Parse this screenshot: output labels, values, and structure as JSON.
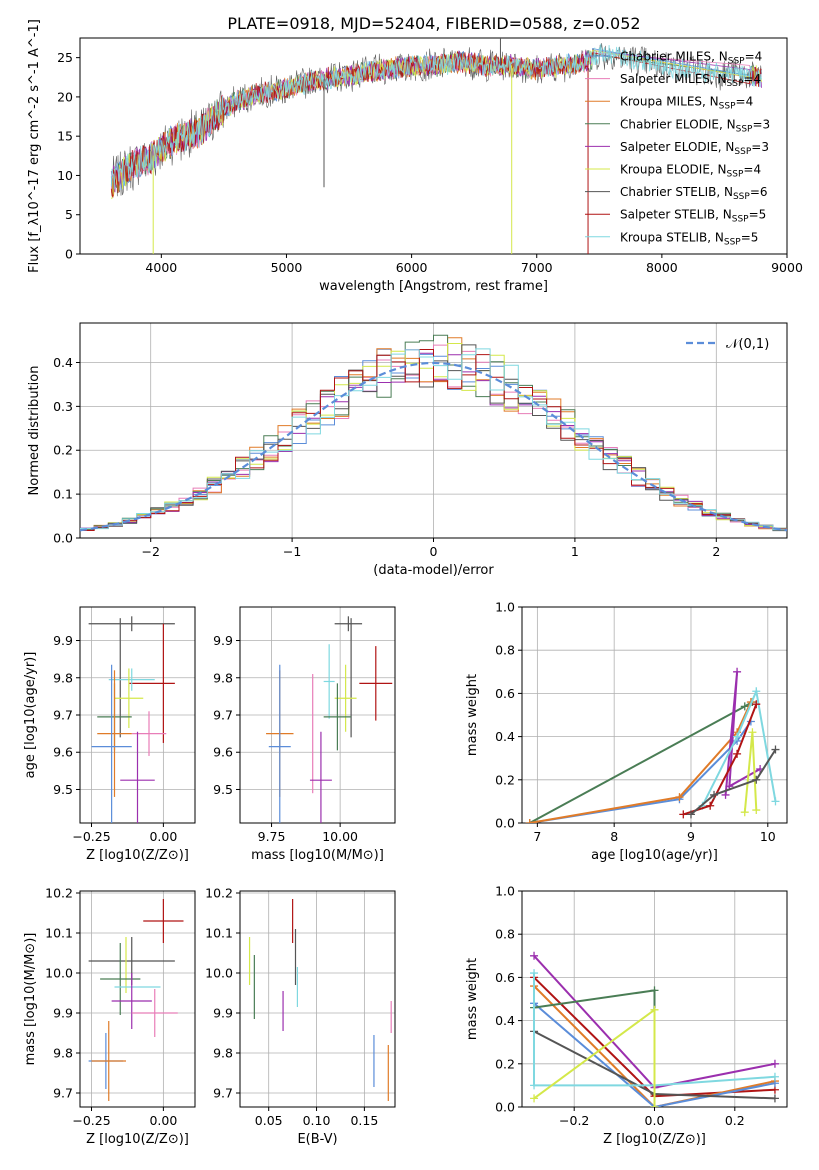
{
  "figure_title": "PLATE=0918, MJD=52404, FIBERID=0588, z=0.052",
  "colors": {
    "chabrier_miles": "#5b8dd9",
    "salpeter_miles": "#e87db8",
    "kroupa_miles": "#e07b28",
    "chabrier_elodie": "#4a7d55",
    "salpeter_elodie": "#9b2fae",
    "kroupa_elodie": "#d4e84a",
    "chabrier_stelib": "#555555",
    "salpeter_stelib": "#b01414",
    "kroupa_stelib": "#7fd8e0",
    "gauss": "#5b8dd9"
  },
  "chart_data": [
    {
      "id": "spectrum",
      "type": "line",
      "xlabel": "wavelength [Angstrom, rest frame]",
      "ylabel": "Flux [f_λ10^-17 erg cm^-2 s^-1 A^-1]",
      "xlim": [
        3350,
        9000
      ],
      "ylim": [
        0,
        27.5
      ],
      "xticks": [
        4000,
        5000,
        6000,
        7000,
        8000,
        9000
      ],
      "yticks": [
        0,
        5,
        10,
        15,
        20,
        25
      ],
      "grid": false,
      "legend_position": "top-right",
      "series": [
        {
          "name": "Chabrier MILES, N_SSP=4",
          "color_key": "chabrier_miles"
        },
        {
          "name": "Salpeter MILES, N_SSP=4",
          "color_key": "salpeter_miles"
        },
        {
          "name": "Kroupa MILES, N_SSP=4",
          "color_key": "kroupa_miles"
        },
        {
          "name": "Chabrier ELODIE, N_SSP=3",
          "color_key": "chabrier_elodie"
        },
        {
          "name": "Salpeter ELODIE, N_SSP=3",
          "color_key": "salpeter_elodie"
        },
        {
          "name": "Kroupa ELODIE, N_SSP=4",
          "color_key": "kroupa_elodie"
        },
        {
          "name": "Chabrier STELIB, N_SSP=6",
          "color_key": "chabrier_stelib"
        },
        {
          "name": "Salpeter STELIB, N_SSP=5",
          "color_key": "salpeter_stelib"
        },
        {
          "name": "Kroupa STELIB, N_SSP=5",
          "color_key": "kroupa_stelib"
        }
      ],
      "continuum": [
        [
          3600,
          9
        ],
        [
          3700,
          10.5
        ],
        [
          3800,
          11.5
        ],
        [
          3900,
          12
        ],
        [
          4000,
          13.5
        ],
        [
          4100,
          14.5
        ],
        [
          4200,
          15
        ],
        [
          4300,
          15.5
        ],
        [
          4400,
          17
        ],
        [
          4500,
          18.5
        ],
        [
          4600,
          19.5
        ],
        [
          4700,
          20
        ],
        [
          4800,
          20.5
        ],
        [
          5000,
          21
        ],
        [
          5200,
          22
        ],
        [
          5400,
          22.5
        ],
        [
          5600,
          23
        ],
        [
          5800,
          23.5
        ],
        [
          6000,
          24
        ],
        [
          6200,
          24
        ],
        [
          6400,
          24.5
        ],
        [
          6600,
          24
        ],
        [
          6800,
          24
        ],
        [
          7000,
          23.5
        ],
        [
          7200,
          24
        ],
        [
          7400,
          24.5
        ],
        [
          7500,
          25.5
        ],
        [
          7700,
          25
        ],
        [
          8000,
          24
        ],
        [
          8200,
          23.5
        ],
        [
          8400,
          23
        ],
        [
          8600,
          23
        ],
        [
          8800,
          22.5
        ]
      ],
      "noise_amplitude": 1.2,
      "spikes": [
        {
          "x": 3935,
          "y": 0,
          "color_key": "kroupa_elodie"
        },
        {
          "x": 5300,
          "y": 8.5,
          "color_key": "chabrier_stelib"
        },
        {
          "x": 6800,
          "y": 0,
          "color_key": "kroupa_elodie"
        },
        {
          "x": 7410,
          "y": 0,
          "color_key": "salpeter_stelib"
        },
        {
          "x": 6710,
          "y": 27.5,
          "color_key": "chabrier_stelib"
        }
      ]
    },
    {
      "id": "residuals",
      "type": "histogram",
      "xlabel": "(data-model)/error",
      "ylabel": "Normed distribution",
      "xlim": [
        -2.5,
        2.5
      ],
      "ylim": [
        0,
        0.49
      ],
      "xticks": [
        -2,
        -1,
        0,
        1,
        2
      ],
      "yticks": [
        0.0,
        0.1,
        0.2,
        0.3,
        0.4
      ],
      "grid": true,
      "legend_position": "top-right",
      "bin_width": 0.1,
      "gauss_label": "𝒩(0,1)",
      "series_seed_keys": [
        "chabrier_miles",
        "salpeter_miles",
        "kroupa_miles",
        "chabrier_elodie",
        "salpeter_elodie",
        "kroupa_elodie",
        "chabrier_stelib",
        "salpeter_stelib",
        "kroupa_stelib"
      ]
    },
    {
      "id": "age_vs_Z",
      "type": "errorbar",
      "xlabel": "Z [log10(Z/Z⊙)]",
      "ylabel": "age [log10(age/yr)]",
      "xlim": [
        -0.29,
        0.11
      ],
      "ylim": [
        9.41,
        9.99
      ],
      "xticks": [
        -0.25,
        0.0
      ],
      "yticks": [
        9.5,
        9.6,
        9.7,
        9.8,
        9.9
      ],
      "grid": true,
      "points": [
        {
          "color_key": "chabrier_stelib",
          "x": -0.11,
          "xerr": 0.15,
          "y": 9.945,
          "yerr": 0.02
        },
        {
          "color_key": "salpeter_stelib",
          "x": 0.0,
          "xerr": 0.0,
          "y": 9.785,
          "yerr": 0.16
        },
        {
          "color_key": "salpeter_stelib",
          "x": -0.04,
          "xerr": 0.08,
          "y": 9.785,
          "yerr": 0.0
        },
        {
          "color_key": "chabrier_stelib",
          "x": -0.15,
          "xerr": 0.0,
          "y": 9.8,
          "yerr": 0.16
        },
        {
          "color_key": "kroupa_stelib",
          "x": -0.11,
          "xerr": 0.08,
          "y": 9.795,
          "yerr": 0.03
        },
        {
          "color_key": "kroupa_elodie",
          "x": -0.12,
          "xerr": 0.05,
          "y": 9.745,
          "yerr": 0.08
        },
        {
          "color_key": "chabrier_elodie",
          "x": -0.17,
          "xerr": 0.06,
          "y": 9.695,
          "yerr": 0.09
        },
        {
          "color_key": "salpeter_miles",
          "x": -0.05,
          "xerr": 0.06,
          "y": 9.65,
          "yerr": 0.06
        },
        {
          "color_key": "kroupa_miles",
          "x": -0.17,
          "xerr": 0.06,
          "y": 9.65,
          "yerr": 0.17
        },
        {
          "color_key": "chabrier_miles",
          "x": -0.18,
          "xerr": 0.07,
          "y": 9.615,
          "yerr": 0.22
        },
        {
          "color_key": "salpeter_elodie",
          "x": -0.09,
          "xerr": 0.06,
          "y": 9.525,
          "yerr": 0.13
        }
      ]
    },
    {
      "id": "age_vs_mass",
      "type": "errorbar",
      "xlabel": "mass [log10(M/M⊙)]",
      "ylabel": "",
      "xlim": [
        9.635,
        10.2
      ],
      "ylim": [
        9.41,
        9.99
      ],
      "xticks": [
        9.75,
        10.0
      ],
      "yticks": [
        9.5,
        9.6,
        9.7,
        9.8,
        9.9
      ],
      "grid": true,
      "points": [
        {
          "color_key": "chabrier_stelib",
          "x": 10.03,
          "xerr": 0.05,
          "y": 9.945,
          "yerr": 0.02
        },
        {
          "color_key": "chabrier_stelib",
          "x": 10.04,
          "xerr": 0.0,
          "y": 9.8,
          "yerr": 0.16
        },
        {
          "color_key": "salpeter_stelib",
          "x": 10.13,
          "xerr": 0.06,
          "y": 9.785,
          "yerr": 0.1
        },
        {
          "color_key": "kroupa_stelib",
          "x": 9.96,
          "xerr": 0.02,
          "y": 9.79,
          "yerr": 0.1
        },
        {
          "color_key": "kroupa_elodie",
          "x": 10.02,
          "xerr": 0.04,
          "y": 9.745,
          "yerr": 0.09
        },
        {
          "color_key": "chabrier_elodie",
          "x": 9.99,
          "xerr": 0.05,
          "y": 9.695,
          "yerr": 0.09
        },
        {
          "color_key": "salpeter_miles",
          "x": 9.9,
          "xerr": 0.0,
          "y": 9.65,
          "yerr": 0.16
        },
        {
          "color_key": "kroupa_miles",
          "x": 9.78,
          "xerr": 0.05,
          "y": 9.65,
          "yerr": 0.17
        },
        {
          "color_key": "chabrier_miles",
          "x": 9.78,
          "xerr": 0.04,
          "y": 9.615,
          "yerr": 0.22
        },
        {
          "color_key": "salpeter_elodie",
          "x": 9.93,
          "xerr": 0.04,
          "y": 9.525,
          "yerr": 0.13
        }
      ]
    },
    {
      "id": "weight_vs_age",
      "type": "line",
      "xlabel": "age [log10(age/yr)]",
      "ylabel": "mass weight",
      "xlim": [
        6.8,
        10.25
      ],
      "ylim": [
        0,
        1.0
      ],
      "xticks": [
        7,
        8,
        9,
        10
      ],
      "yticks": [
        0.0,
        0.2,
        0.4,
        0.6,
        0.8,
        1.0
      ],
      "grid": true,
      "series": [
        {
          "color_key": "chabrier_elodie",
          "points": [
            [
              6.9,
              0.0
            ],
            [
              9.7,
              0.54
            ],
            [
              9.8,
              0.56
            ]
          ]
        },
        {
          "color_key": "chabrier_miles",
          "points": [
            [
              6.9,
              0.0
            ],
            [
              8.85,
              0.11
            ],
            [
              9.6,
              0.38
            ],
            [
              9.78,
              0.47
            ]
          ]
        },
        {
          "color_key": "kroupa_miles",
          "points": [
            [
              6.9,
              0.0
            ],
            [
              8.85,
              0.12
            ],
            [
              9.6,
              0.42
            ],
            [
              9.78,
              0.56
            ]
          ]
        },
        {
          "color_key": "salpeter_elodie",
          "points": [
            [
              9.45,
              0.13
            ],
            [
              9.6,
              0.7
            ],
            [
              9.5,
              0.17
            ],
            [
              9.9,
              0.25
            ]
          ]
        },
        {
          "color_key": "kroupa_stelib",
          "points": [
            [
              9.15,
              0.08
            ],
            [
              9.6,
              0.4
            ],
            [
              9.85,
              0.61
            ],
            [
              10.1,
              0.1
            ]
          ]
        },
        {
          "color_key": "salpeter_stelib",
          "points": [
            [
              8.9,
              0.04
            ],
            [
              9.25,
              0.08
            ],
            [
              9.6,
              0.32
            ],
            [
              9.85,
              0.55
            ]
          ]
        },
        {
          "color_key": "kroupa_elodie",
          "points": [
            [
              9.7,
              0.05
            ],
            [
              9.8,
              0.42
            ],
            [
              9.85,
              0.06
            ]
          ]
        },
        {
          "color_key": "chabrier_stelib",
          "points": [
            [
              9.0,
              0.04
            ],
            [
              9.3,
              0.13
            ],
            [
              9.85,
              0.2
            ],
            [
              10.1,
              0.34
            ]
          ]
        }
      ]
    },
    {
      "id": "mass_vs_Z",
      "type": "errorbar",
      "xlabel": "Z [log10(Z/Z⊙)]",
      "ylabel": "mass [log10(M/M⊙)]",
      "xlim": [
        -0.29,
        0.11
      ],
      "ylim": [
        9.665,
        10.205
      ],
      "xticks": [
        -0.25,
        0.0
      ],
      "yticks": [
        9.7,
        9.8,
        9.9,
        10.0,
        10.1,
        10.2
      ],
      "grid": true,
      "points": [
        {
          "color_key": "salpeter_stelib",
          "x": 0.0,
          "xerr": 0.07,
          "y": 10.13,
          "yerr": 0.055
        },
        {
          "color_key": "chabrier_stelib",
          "x": -0.11,
          "xerr": 0.15,
          "y": 10.03,
          "yerr": 0.06
        },
        {
          "color_key": "kroupa_elodie",
          "x": -0.13,
          "xerr": 0.0,
          "y": 10.02,
          "yerr": 0.07
        },
        {
          "color_key": "chabrier_elodie",
          "x": -0.15,
          "xerr": 0.07,
          "y": 9.985,
          "yerr": 0.09
        },
        {
          "color_key": "kroupa_stelib",
          "x": -0.09,
          "xerr": 0.08,
          "y": 9.965,
          "yerr": 0.0
        },
        {
          "color_key": "salpeter_elodie",
          "x": -0.11,
          "xerr": 0.07,
          "y": 9.93,
          "yerr": 0.07
        },
        {
          "color_key": "salpeter_miles",
          "x": -0.03,
          "xerr": 0.08,
          "y": 9.9,
          "yerr": 0.06
        },
        {
          "color_key": "chabrier_miles",
          "x": -0.2,
          "xerr": 0.06,
          "y": 9.78,
          "yerr": 0.07
        },
        {
          "color_key": "kroupa_miles",
          "x": -0.19,
          "xerr": 0.06,
          "y": 9.78,
          "yerr": 0.1
        }
      ]
    },
    {
      "id": "mass_vs_EBV",
      "type": "errorbar",
      "xlabel": "E(B-V)",
      "ylabel": "",
      "xlim": [
        0.02,
        0.182
      ],
      "ylim": [
        9.665,
        10.205
      ],
      "xticks": [
        0.05,
        0.1,
        0.15
      ],
      "yticks": [
        9.7,
        9.8,
        9.9,
        10.0,
        10.1,
        10.2
      ],
      "grid": true,
      "points": [
        {
          "color_key": "salpeter_stelib",
          "x": 0.075,
          "xerr": 0.0,
          "y": 10.13,
          "yerr": 0.055
        },
        {
          "color_key": "chabrier_stelib",
          "x": 0.078,
          "xerr": 0.0,
          "y": 10.04,
          "yerr": 0.07
        },
        {
          "color_key": "kroupa_elodie",
          "x": 0.03,
          "xerr": 0.0,
          "y": 10.03,
          "yerr": 0.06
        },
        {
          "color_key": "chabrier_elodie",
          "x": 0.035,
          "xerr": 0.0,
          "y": 9.965,
          "yerr": 0.08
        },
        {
          "color_key": "kroupa_stelib",
          "x": 0.08,
          "xerr": 0.0,
          "y": 9.965,
          "yerr": 0.05
        },
        {
          "color_key": "salpeter_elodie",
          "x": 0.065,
          "xerr": 0.0,
          "y": 9.905,
          "yerr": 0.05
        },
        {
          "color_key": "salpeter_miles",
          "x": 0.178,
          "xerr": 0.0,
          "y": 9.89,
          "yerr": 0.04
        },
        {
          "color_key": "chabrier_miles",
          "x": 0.16,
          "xerr": 0.0,
          "y": 9.78,
          "yerr": 0.065
        },
        {
          "color_key": "kroupa_miles",
          "x": 0.175,
          "xerr": 0.0,
          "y": 9.75,
          "yerr": 0.07
        }
      ]
    },
    {
      "id": "weight_vs_Z",
      "type": "line",
      "xlabel": "Z [log10(Z/Z⊙)]",
      "ylabel": "mass weight",
      "xlim": [
        -0.33,
        0.33
      ],
      "ylim": [
        0,
        1.0
      ],
      "xticks": [
        -0.2,
        0.0,
        0.2
      ],
      "yticks": [
        0.0,
        0.2,
        0.4,
        0.6,
        0.8,
        1.0
      ],
      "grid": true,
      "series": [
        {
          "color_key": "salpeter_elodie",
          "points": [
            [
              -0.3,
              0.7
            ],
            [
              0.0,
              0.09
            ],
            [
              0.3,
              0.2
            ]
          ]
        },
        {
          "color_key": "salpeter_stelib",
          "points": [
            [
              -0.3,
              0.6
            ],
            [
              0.0,
              0.05
            ],
            [
              0.3,
              0.08
            ]
          ]
        },
        {
          "color_key": "kroupa_miles",
          "points": [
            [
              -0.3,
              0.56
            ],
            [
              0.0,
              0.0
            ],
            [
              0.3,
              0.12
            ]
          ]
        },
        {
          "color_key": "chabrier_miles",
          "points": [
            [
              -0.3,
              0.48
            ],
            [
              0.0,
              0.0
            ],
            [
              0.3,
              0.11
            ]
          ]
        },
        {
          "color_key": "chabrier_elodie",
          "points": [
            [
              -0.3,
              0.46
            ],
            [
              0.0,
              0.54
            ],
            [
              0.0,
              0.0
            ]
          ]
        },
        {
          "color_key": "chabrier_stelib",
          "points": [
            [
              -0.3,
              0.35
            ],
            [
              0.0,
              0.06
            ],
            [
              0.3,
              0.04
            ]
          ]
        },
        {
          "color_key": "kroupa_stelib",
          "points": [
            [
              -0.3,
              0.62
            ],
            [
              -0.3,
              0.1
            ],
            [
              0.0,
              0.1
            ],
            [
              0.3,
              0.14
            ]
          ]
        },
        {
          "color_key": "kroupa_elodie",
          "points": [
            [
              -0.3,
              0.04
            ],
            [
              0.0,
              0.45
            ],
            [
              0.0,
              0.0
            ]
          ]
        }
      ]
    }
  ]
}
